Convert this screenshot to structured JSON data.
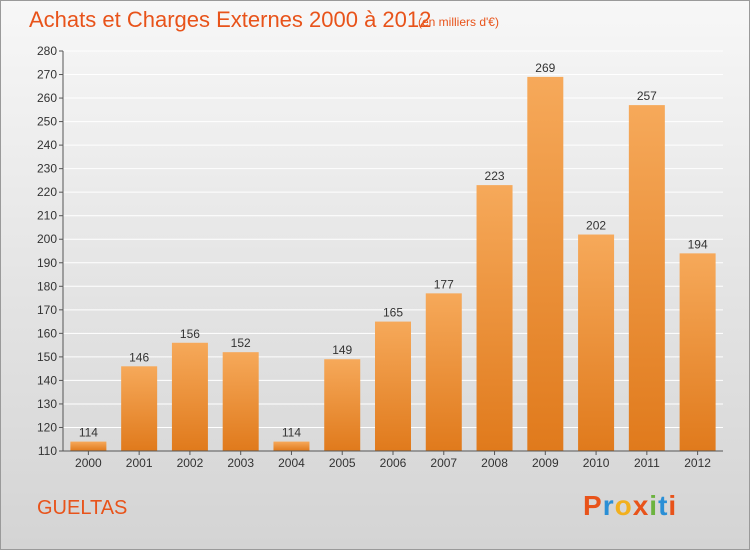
{
  "header": {
    "title": "Achats et Charges Externes 2000 à 2012",
    "subtitle": "(en milliers d'€)"
  },
  "footer": {
    "commune": "GUELTAS",
    "brand": "Proxiti",
    "brand_colors": [
      "#e8531a",
      "#2a8fd6",
      "#f2b01e",
      "#e8531a",
      "#6cb33f",
      "#2a8fd6",
      "#e8531a"
    ]
  },
  "colors": {
    "bar_top": "#f6a95a",
    "bar_bottom": "#e07a1c",
    "accent": "#e8531a",
    "grid": "#ffffff"
  },
  "chart_data": {
    "type": "bar",
    "title": "Achats et Charges Externes 2000 à 2012",
    "subtitle": "(en milliers d'€)",
    "categories": [
      "2000",
      "2001",
      "2002",
      "2003",
      "2004",
      "2005",
      "2006",
      "2007",
      "2008",
      "2009",
      "2010",
      "2011",
      "2012"
    ],
    "values": [
      114,
      146,
      156,
      152,
      114,
      149,
      165,
      177,
      223,
      269,
      202,
      257,
      194
    ],
    "ylim": [
      110,
      280
    ],
    "yticks": [
      110,
      120,
      130,
      140,
      150,
      160,
      170,
      180,
      190,
      200,
      210,
      220,
      230,
      240,
      250,
      260,
      270,
      280
    ],
    "grid": true,
    "xlabel": "",
    "ylabel": ""
  }
}
